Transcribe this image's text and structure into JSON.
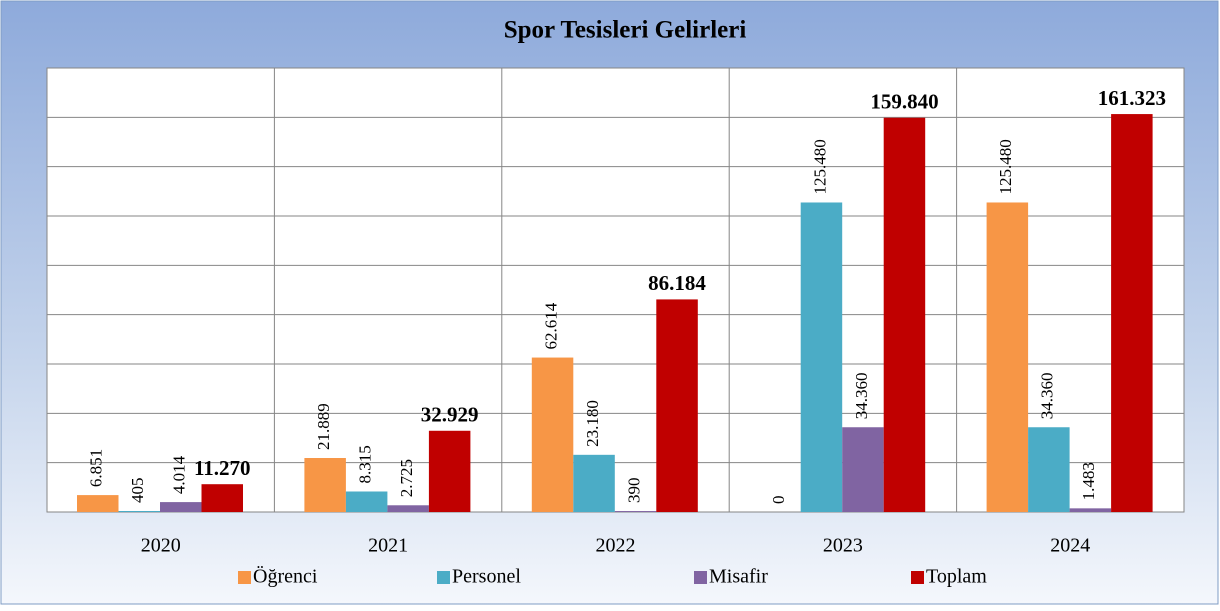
{
  "chart_data": {
    "type": "bar",
    "title": "Spor Tesisleri Gelirleri",
    "categories": [
      "2020",
      "2021",
      "2022",
      "2023",
      "2024"
    ],
    "series": [
      {
        "name": "Öğrenci",
        "color": "#f79646",
        "values": [
          6851,
          21889,
          62614,
          0,
          125480
        ],
        "value_labels": [
          "6.851",
          "21.889",
          "62.614",
          "0",
          "125.480"
        ]
      },
      {
        "name": "Personel",
        "color": "#4bacc6",
        "values": [
          405,
          8315,
          23180,
          125480,
          34360
        ],
        "value_labels": [
          "405",
          "8.315",
          "23.180",
          "125.480",
          "34.360"
        ]
      },
      {
        "name": "Misafir",
        "color": "#8064a2",
        "values": [
          4014,
          2725,
          390,
          34360,
          1483
        ],
        "value_labels": [
          "4.014",
          "2.725",
          "390",
          "34.360",
          "1.483"
        ]
      },
      {
        "name": "Toplam",
        "color": "#c00000",
        "values": [
          11270,
          32929,
          86184,
          159840,
          161323
        ],
        "value_labels": [
          "11.270",
          "32.929",
          "86.184",
          "159.840",
          "161.323"
        ]
      }
    ],
    "ylim": [
      0,
      180000
    ],
    "yticks": [
      0,
      20000,
      40000,
      60000,
      80000,
      100000,
      120000,
      140000,
      160000,
      180000
    ],
    "grid": true
  }
}
